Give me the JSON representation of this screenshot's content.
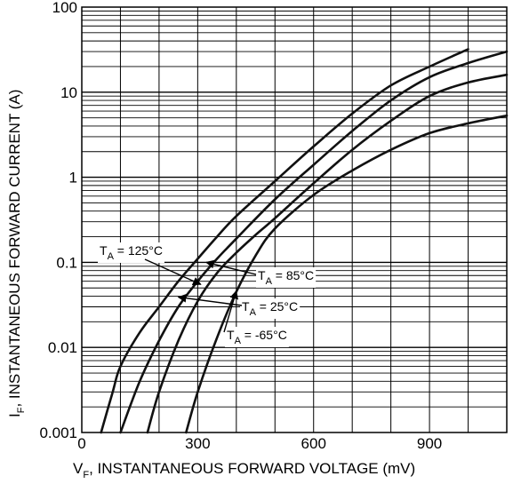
{
  "chart_data": {
    "type": "line",
    "xlabel": {
      "main": "V",
      "sub": "F",
      "rest": ", INSTANTANEOUS FORWARD VOLTAGE (mV)"
    },
    "ylabel": {
      "main": "I",
      "sub": "F",
      "rest": ", INSTANTANEOUS FORWARD CURRENT (A)"
    },
    "x_scale": "linear",
    "y_scale": "log",
    "xlim": [
      0,
      1100
    ],
    "ylim": [
      0.001,
      100
    ],
    "x_ticks": [
      {
        "value": 0,
        "label": "0"
      },
      {
        "value": 300,
        "label": "300"
      },
      {
        "value": 600,
        "label": "600"
      },
      {
        "value": 900,
        "label": "900"
      }
    ],
    "y_ticks": [
      {
        "value": 0.001,
        "label": "0.001"
      },
      {
        "value": 0.01,
        "label": "0.01"
      },
      {
        "value": 0.1,
        "label": "0.1"
      },
      {
        "value": 1,
        "label": "1"
      },
      {
        "value": 10,
        "label": "10"
      },
      {
        "value": 100,
        "label": "100"
      }
    ],
    "grid": true,
    "series": [
      {
        "name": "T_A = 125°C",
        "x": [
          50,
          80,
          100,
          150,
          200,
          250,
          300,
          350,
          400,
          500,
          600,
          700,
          800,
          900,
          1000
        ],
        "y": [
          0.001,
          0.003,
          0.006,
          0.015,
          0.03,
          0.06,
          0.11,
          0.2,
          0.35,
          0.9,
          2.3,
          5.6,
          12,
          20,
          32
        ]
      },
      {
        "name": "T_A = 85°C",
        "x": [
          100,
          150,
          200,
          250,
          300,
          350,
          400,
          500,
          600,
          700,
          800,
          900,
          1000,
          1100
        ],
        "y": [
          0.001,
          0.004,
          0.012,
          0.03,
          0.06,
          0.11,
          0.19,
          0.55,
          1.4,
          3.5,
          8,
          15,
          22,
          30
        ]
      },
      {
        "name": "T_A = 25°C",
        "x": [
          170,
          200,
          250,
          300,
          350,
          400,
          450,
          500,
          600,
          700,
          800,
          900,
          1000,
          1100
        ],
        "y": [
          0.001,
          0.003,
          0.012,
          0.035,
          0.075,
          0.13,
          0.21,
          0.33,
          0.85,
          2.1,
          4.6,
          9,
          13,
          16
        ]
      },
      {
        "name": "T_A = -65°C",
        "x": [
          270,
          300,
          350,
          400,
          450,
          500,
          600,
          700,
          800,
          900,
          1000,
          1100
        ],
        "y": [
          0.001,
          0.003,
          0.013,
          0.045,
          0.12,
          0.25,
          0.62,
          1.2,
          2.1,
          3.3,
          4.3,
          5.3
        ]
      }
    ],
    "annotations": [
      {
        "series": "T_A = 125°C",
        "prefix": "T",
        "sub": "A",
        "text": " = 125°C",
        "point": {
          "x": 308,
          "y": 0.055
        }
      },
      {
        "series": "T_A = 85°C",
        "prefix": "T",
        "sub": "A",
        "text": " = 85°C",
        "point": {
          "x": 322,
          "y": 0.1
        }
      },
      {
        "series": "T_A = 25°C",
        "prefix": "T",
        "sub": "A",
        "text": " = 25°C",
        "point": {
          "x": 250,
          "y": 0.039
        }
      },
      {
        "series": "T_A = -65°C",
        "prefix": "T",
        "sub": "A",
        "text": " = -65°C",
        "point": {
          "x": 400,
          "y": 0.046
        }
      }
    ]
  }
}
